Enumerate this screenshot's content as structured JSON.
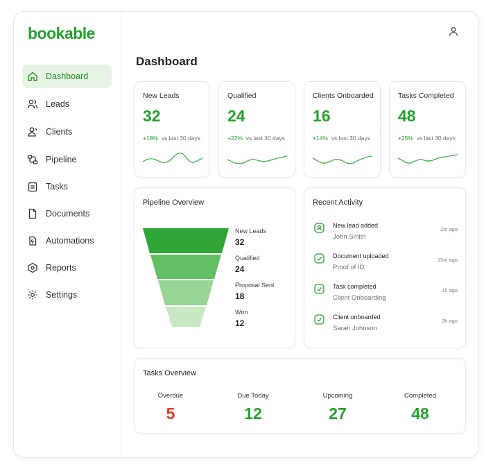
{
  "app": {
    "logo": "bookable"
  },
  "sidebar": {
    "items": [
      {
        "label": "Dashboard",
        "icon": "home-icon",
        "active": true
      },
      {
        "label": "Leads",
        "icon": "users-icon"
      },
      {
        "label": "Clients",
        "icon": "user-group-icon"
      },
      {
        "label": "Pipeline",
        "icon": "pipeline-icon"
      },
      {
        "label": "Tasks",
        "icon": "tasks-icon"
      },
      {
        "label": "Documents",
        "icon": "document-icon"
      },
      {
        "label": "Automations",
        "icon": "automation-icon"
      },
      {
        "label": "Reports",
        "icon": "reports-icon"
      },
      {
        "label": "Settings",
        "icon": "gear-icon"
      }
    ]
  },
  "header": {
    "title": "Dashboard",
    "user_icon": "user-icon"
  },
  "stats": [
    {
      "label": "New Leads",
      "value": "32",
      "change": "+18%",
      "period": "vs last 30 days"
    },
    {
      "label": "Qualified",
      "value": "24",
      "change": "+22%",
      "period": "vs last 30 days"
    },
    {
      "label": "Clients Onboarded",
      "value": "16",
      "change": "+14%",
      "period": "vs last 30 days"
    },
    {
      "label": "Tasks Completed",
      "value": "48",
      "change": "+25%",
      "period": "vs last 30 days"
    }
  ],
  "pipeline": {
    "title": "Pipeline Overview",
    "stages": [
      {
        "label": "New Leads",
        "value": "32"
      },
      {
        "label": "Qualified",
        "value": "24"
      },
      {
        "label": "Proposal Sent",
        "value": "18"
      },
      {
        "label": "Won",
        "value": "12"
      }
    ]
  },
  "activity": {
    "title": "Recent Activity",
    "items": [
      {
        "title": "New lead added",
        "subtitle": "John Smith",
        "time": "2m ago"
      },
      {
        "title": "Document uploaded",
        "subtitle": "Proof of ID",
        "time": "15m ago"
      },
      {
        "title": "Task completed",
        "subtitle": "Client Onboarding",
        "time": "1h ago"
      },
      {
        "title": "Client onboarded",
        "subtitle": "Sarah Johnson",
        "time": "2h ago"
      }
    ]
  },
  "tasks": {
    "title": "Tasks Overview",
    "items": [
      {
        "label": "Overdue",
        "value": "5"
      },
      {
        "label": "Due Today",
        "value": "12"
      },
      {
        "label": "Upcoming",
        "value": "27"
      },
      {
        "label": "Completed",
        "value": "48"
      }
    ]
  },
  "colors": {
    "brand": "#23a32b",
    "overdue": "#e03a2f",
    "active_bg": "#e6f5e3"
  }
}
